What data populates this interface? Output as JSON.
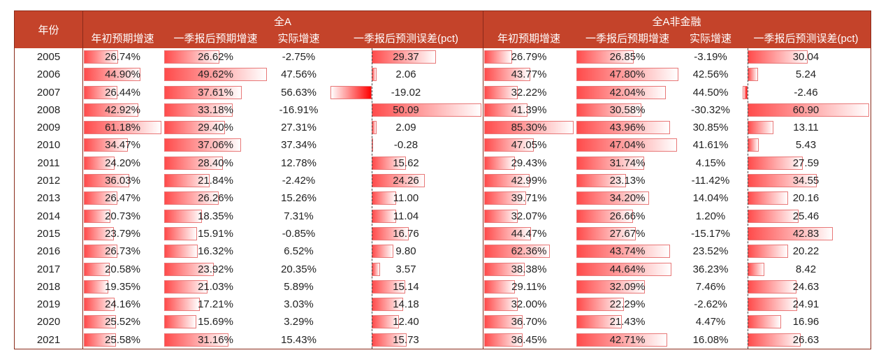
{
  "header": {
    "year": "年份",
    "groupA": "全A",
    "groupB": "全A非金融",
    "cols": [
      "年初预期增速",
      "一季报后预期增速",
      "实际增速",
      "一季报后预测误差(pct)"
    ]
  },
  "colors": {
    "header_bg": "#c4432a",
    "bar_positive": "#ff4b4b",
    "bar_negative": "#ff0000"
  },
  "rows": [
    {
      "year": "2005",
      "a": [
        "26.74%",
        "26.62%",
        "-2.75%",
        "29.37"
      ],
      "b": [
        "26.79%",
        "26.85%",
        "-3.19%",
        "30.04"
      ]
    },
    {
      "year": "2006",
      "a": [
        "44.90%",
        "49.62%",
        "47.56%",
        "2.06"
      ],
      "b": [
        "43.77%",
        "47.80%",
        "42.56%",
        "5.24"
      ]
    },
    {
      "year": "2007",
      "a": [
        "26.44%",
        "37.61%",
        "56.63%",
        "-19.02"
      ],
      "b": [
        "32.22%",
        "42.04%",
        "44.50%",
        "-2.46"
      ]
    },
    {
      "year": "2008",
      "a": [
        "42.92%",
        "33.18%",
        "-16.91%",
        "50.09"
      ],
      "b": [
        "41.39%",
        "30.58%",
        "-30.32%",
        "60.90"
      ]
    },
    {
      "year": "2009",
      "a": [
        "61.18%",
        "29.40%",
        "27.31%",
        "2.09"
      ],
      "b": [
        "85.30%",
        "43.96%",
        "30.85%",
        "13.11"
      ]
    },
    {
      "year": "2010",
      "a": [
        "34.47%",
        "37.06%",
        "37.34%",
        "-0.28"
      ],
      "b": [
        "47.05%",
        "47.04%",
        "41.61%",
        "5.43"
      ]
    },
    {
      "year": "2011",
      "a": [
        "24.20%",
        "28.40%",
        "12.78%",
        "15.62"
      ],
      "b": [
        "29.43%",
        "31.74%",
        "4.15%",
        "27.59"
      ]
    },
    {
      "year": "2012",
      "a": [
        "36.03%",
        "21.84%",
        "-2.42%",
        "24.26"
      ],
      "b": [
        "42.99%",
        "23.13%",
        "-11.42%",
        "34.55"
      ]
    },
    {
      "year": "2013",
      "a": [
        "26.47%",
        "26.26%",
        "15.26%",
        "11.00"
      ],
      "b": [
        "39.71%",
        "34.20%",
        "14.04%",
        "20.16"
      ]
    },
    {
      "year": "2014",
      "a": [
        "20.73%",
        "18.35%",
        "7.31%",
        "11.04"
      ],
      "b": [
        "32.07%",
        "26.66%",
        "1.20%",
        "25.46"
      ]
    },
    {
      "year": "2015",
      "a": [
        "23.79%",
        "15.91%",
        "-0.85%",
        "16.76"
      ],
      "b": [
        "44.47%",
        "27.67%",
        "-15.17%",
        "42.83"
      ]
    },
    {
      "year": "2016",
      "a": [
        "26.73%",
        "16.32%",
        "6.52%",
        "9.80"
      ],
      "b": [
        "62.36%",
        "43.74%",
        "23.52%",
        "20.22"
      ]
    },
    {
      "year": "2017",
      "a": [
        "20.58%",
        "23.92%",
        "20.35%",
        "3.57"
      ],
      "b": [
        "38.38%",
        "44.64%",
        "36.23%",
        "8.42"
      ]
    },
    {
      "year": "2018",
      "a": [
        "19.35%",
        "21.03%",
        "5.89%",
        "15.14"
      ],
      "b": [
        "29.11%",
        "32.09%",
        "7.46%",
        "24.63"
      ]
    },
    {
      "year": "2019",
      "a": [
        "24.16%",
        "17.21%",
        "3.03%",
        "14.18"
      ],
      "b": [
        "32.00%",
        "22.29%",
        "-2.62%",
        "24.91"
      ]
    },
    {
      "year": "2020",
      "a": [
        "25.52%",
        "15.69%",
        "3.29%",
        "12.40"
      ],
      "b": [
        "36.70%",
        "21.43%",
        "4.47%",
        "16.96"
      ]
    },
    {
      "year": "2021",
      "a": [
        "25.58%",
        "31.16%",
        "15.43%",
        "15.73"
      ],
      "b": [
        "36.45%",
        "42.71%",
        "16.08%",
        "26.63"
      ]
    }
  ]
}
